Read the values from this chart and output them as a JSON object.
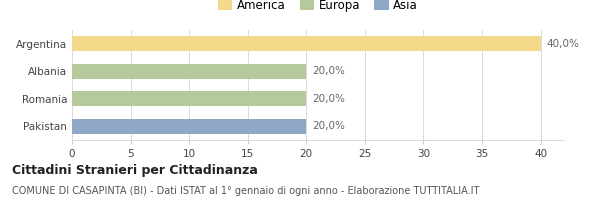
{
  "categories": [
    "Argentina",
    "Albania",
    "Romania",
    "Pakistan"
  ],
  "values": [
    40.0,
    20.0,
    20.0,
    20.0
  ],
  "colors": [
    "#f5d98b",
    "#b5c99a",
    "#b5c99a",
    "#8fa8c8"
  ],
  "legend_labels": [
    "America",
    "Europa",
    "Asia"
  ],
  "legend_colors": [
    "#f5d98b",
    "#b5c99a",
    "#8fa8c8"
  ],
  "bar_labels": [
    "40,0%",
    "20,0%",
    "20,0%",
    "20,0%"
  ],
  "xlim": [
    0,
    42
  ],
  "xticks": [
    0,
    5,
    10,
    15,
    20,
    25,
    30,
    35,
    40
  ],
  "title_bold": "Cittadini Stranieri per Cittadinanza",
  "subtitle": "COMUNE DI CASAPINTA (BI) - Dati ISTAT al 1° gennaio di ogni anno - Elaborazione TUTTITALIA.IT",
  "bg_color": "#ffffff",
  "bar_height": 0.55,
  "label_fontsize": 7.5,
  "tick_fontsize": 7.5,
  "legend_fontsize": 8.5,
  "title_fontsize": 9,
  "subtitle_fontsize": 7
}
